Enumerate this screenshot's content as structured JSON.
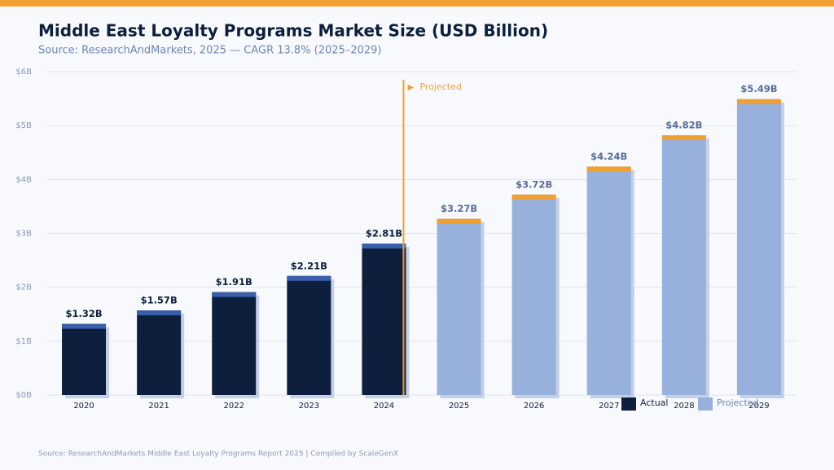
{
  "chart_data": {
    "type": "bar",
    "title": "Middle East Loyalty Programs Market Size (USD Billion)",
    "subtitle": "Source: ResearchAndMarkets, 2025 — CAGR 13.8% (2025–2029)",
    "source": "Source: ResearchAndMarkets Middle East Loyalty Programs Report 2025 | Compiled by ScaleGenX",
    "annotation": "Projected",
    "categories": [
      "2020",
      "2021",
      "2022",
      "2023",
      "2024",
      "2025",
      "2026",
      "2027",
      "2028",
      "2029"
    ],
    "series": [
      {
        "name": "Actual",
        "color": "#0d1f3c",
        "cap_color": "#3a5faa",
        "label_color": "#0d1f3c",
        "values": [
          1.32,
          1.57,
          1.91,
          2.21,
          2.81,
          null,
          null,
          null,
          null,
          null
        ],
        "value_labels": [
          "$1.32B",
          "$1.57B",
          "$1.91B",
          "$2.21B",
          "$2.81B",
          null,
          null,
          null,
          null,
          null
        ]
      },
      {
        "name": "Projected",
        "color": "#97b0dc",
        "cap_color": "#f0a030",
        "label_color": "#5a6e9a",
        "values": [
          null,
          null,
          null,
          null,
          null,
          3.27,
          3.72,
          4.24,
          4.82,
          5.49
        ],
        "value_labels": [
          null,
          null,
          null,
          null,
          null,
          "$3.27B",
          "$3.72B",
          "$4.24B",
          "$4.82B",
          "$5.49B"
        ]
      }
    ],
    "ylim": [
      0,
      6
    ],
    "yticks": [
      {
        "value": 0,
        "label": "$0B"
      },
      {
        "value": 1,
        "label": "$1B"
      },
      {
        "value": 2,
        "label": "$2B"
      },
      {
        "value": 3,
        "label": "$3B"
      },
      {
        "value": 4,
        "label": "$4B"
      },
      {
        "value": 5,
        "label": "$5B"
      },
      {
        "value": 6,
        "label": "$6B"
      }
    ],
    "grid": true
  }
}
